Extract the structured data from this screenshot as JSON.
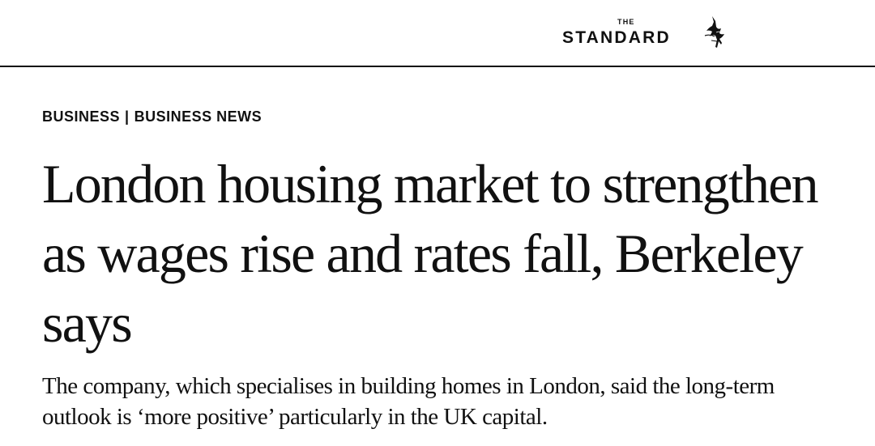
{
  "masthead": {
    "logo_small": "THE",
    "logo_main": "STANDARD",
    "logo_icon": "bird-logo-icon"
  },
  "breadcrumb": {
    "section": "BUSINESS",
    "separator": "|",
    "subsection": "BUSINESS NEWS"
  },
  "article": {
    "headline": "London housing market to strengthen as wages rise and rates fall, Berkeley says",
    "standfirst": "The company, which specialises in building homes in London, said the long-term outlook is ‘more positive’ particularly in the UK capital."
  }
}
